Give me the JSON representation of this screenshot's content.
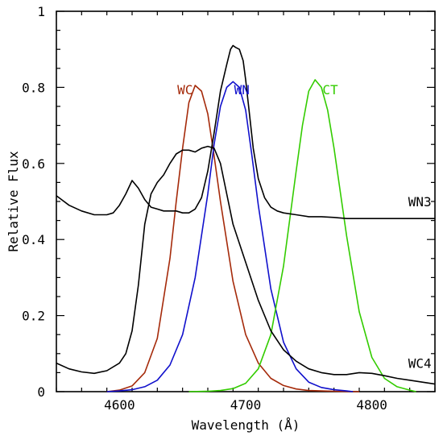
{
  "chart_data": {
    "type": "line",
    "title": "",
    "xlabel": "Wavelength (Å)",
    "ylabel": "Relative Flux",
    "xlim": [
      4550,
      4850
    ],
    "ylim": [
      0,
      1
    ],
    "x_ticks": [
      4600,
      4700,
      4800
    ],
    "y_ticks": [
      0,
      0.2,
      0.4,
      0.6,
      0.8,
      1
    ],
    "y_tick_labels": [
      "0",
      "0.2",
      "0.4",
      "0.6",
      "0.8",
      "1"
    ],
    "series": [
      {
        "name": "WC",
        "color": "#a52a0a",
        "x": [
          4590,
          4600,
          4610,
          4620,
          4630,
          4640,
          4645,
          4650,
          4655,
          4660,
          4665,
          4670,
          4675,
          4680,
          4690,
          4700,
          4710,
          4720,
          4730,
          4740,
          4750,
          4760,
          4770,
          4780,
          4790
        ],
        "y": [
          0.0,
          0.004,
          0.015,
          0.05,
          0.14,
          0.35,
          0.5,
          0.64,
          0.76,
          0.805,
          0.79,
          0.73,
          0.62,
          0.5,
          0.29,
          0.15,
          0.075,
          0.035,
          0.016,
          0.007,
          0.003,
          0.002,
          0.001,
          0.0005,
          0.0
        ]
      },
      {
        "name": "WN",
        "color": "#1010cc",
        "x": [
          4590,
          4600,
          4610,
          4620,
          4630,
          4640,
          4650,
          4660,
          4670,
          4675,
          4680,
          4685,
          4690,
          4695,
          4700,
          4705,
          4710,
          4720,
          4730,
          4740,
          4750,
          4760,
          4770,
          4780,
          4785
        ],
        "y": [
          0.0,
          0.002,
          0.005,
          0.013,
          0.03,
          0.07,
          0.15,
          0.3,
          0.52,
          0.65,
          0.75,
          0.8,
          0.815,
          0.8,
          0.74,
          0.62,
          0.49,
          0.27,
          0.13,
          0.06,
          0.025,
          0.011,
          0.005,
          0.002,
          0.0
        ]
      },
      {
        "name": "CT",
        "color": "#33cc00",
        "x": [
          4655,
          4670,
          4680,
          4690,
          4700,
          4710,
          4720,
          4730,
          4740,
          4745,
          4750,
          4755,
          4760,
          4765,
          4770,
          4780,
          4790,
          4800,
          4810,
          4820,
          4830,
          4835
        ],
        "y": [
          0.0,
          0.001,
          0.003,
          0.008,
          0.022,
          0.06,
          0.15,
          0.33,
          0.58,
          0.7,
          0.79,
          0.82,
          0.8,
          0.74,
          0.64,
          0.41,
          0.21,
          0.09,
          0.035,
          0.013,
          0.004,
          0.0
        ]
      },
      {
        "name": "WN3",
        "color": "#000000",
        "x": [
          4550,
          4560,
          4570,
          4580,
          4590,
          4595,
          4600,
          4605,
          4610,
          4615,
          4620,
          4625,
          4630,
          4635,
          4640,
          4645,
          4650,
          4655,
          4660,
          4665,
          4670,
          4675,
          4680,
          4685,
          4688,
          4690,
          4692,
          4695,
          4698,
          4700,
          4703,
          4706,
          4710,
          4715,
          4720,
          4725,
          4730,
          4740,
          4750,
          4760,
          4770,
          4780,
          4790,
          4800,
          4810,
          4820,
          4830,
          4840,
          4850
        ],
        "y": [
          0.515,
          0.49,
          0.475,
          0.465,
          0.465,
          0.47,
          0.49,
          0.52,
          0.555,
          0.535,
          0.505,
          0.485,
          0.48,
          0.475,
          0.475,
          0.475,
          0.47,
          0.47,
          0.48,
          0.51,
          0.58,
          0.68,
          0.79,
          0.86,
          0.9,
          0.91,
          0.905,
          0.9,
          0.87,
          0.82,
          0.73,
          0.64,
          0.56,
          0.51,
          0.485,
          0.475,
          0.47,
          0.465,
          0.46,
          0.46,
          0.458,
          0.455,
          0.455,
          0.455,
          0.455,
          0.455,
          0.455,
          0.455,
          0.455
        ]
      },
      {
        "name": "WC4",
        "color": "#000000",
        "x": [
          4550,
          4560,
          4570,
          4580,
          4590,
          4600,
          4605,
          4610,
          4615,
          4620,
          4625,
          4630,
          4635,
          4640,
          4645,
          4650,
          4655,
          4660,
          4665,
          4670,
          4675,
          4680,
          4685,
          4690,
          4700,
          4710,
          4720,
          4730,
          4740,
          4750,
          4760,
          4770,
          4780,
          4790,
          4800,
          4810,
          4820,
          4830,
          4840,
          4850
        ],
        "y": [
          0.075,
          0.06,
          0.052,
          0.048,
          0.055,
          0.075,
          0.1,
          0.16,
          0.28,
          0.44,
          0.52,
          0.55,
          0.57,
          0.6,
          0.625,
          0.635,
          0.635,
          0.63,
          0.64,
          0.645,
          0.64,
          0.6,
          0.52,
          0.44,
          0.34,
          0.24,
          0.16,
          0.11,
          0.08,
          0.06,
          0.05,
          0.045,
          0.045,
          0.05,
          0.048,
          0.042,
          0.035,
          0.03,
          0.025,
          0.02
        ]
      }
    ],
    "labels": [
      {
        "text": "WC",
        "color": "#a52a0a",
        "x": 4652,
        "y": 0.795
      },
      {
        "text": "WN",
        "color": "#1010cc",
        "x": 4697,
        "y": 0.795
      },
      {
        "text": "CT",
        "color": "#33cc00",
        "x": 4767,
        "y": 0.795
      },
      {
        "text": "WN3",
        "color": "#000000",
        "x": 4838,
        "y": 0.5
      },
      {
        "text": "WC4",
        "color": "#000000",
        "x": 4838,
        "y": 0.075
      }
    ],
    "grid": false,
    "legend": "none"
  }
}
